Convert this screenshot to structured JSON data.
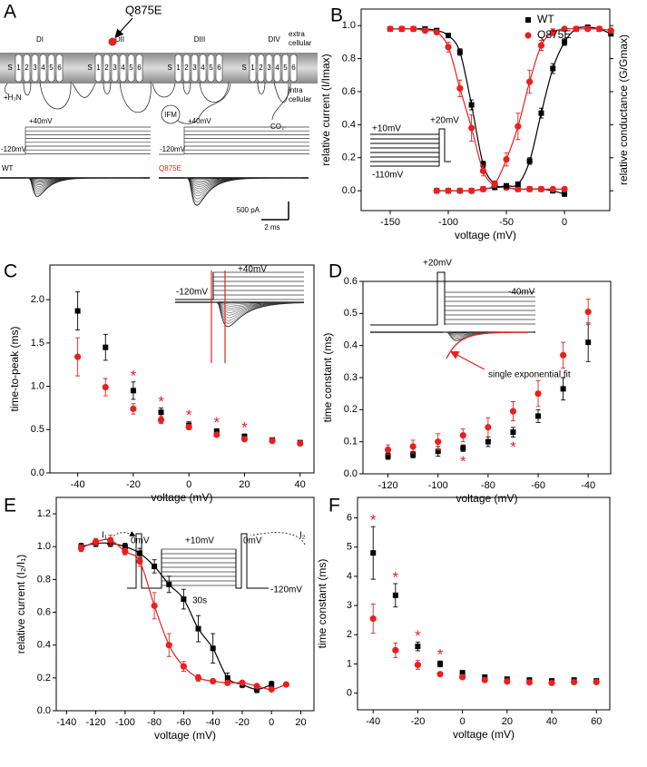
{
  "diagram": {
    "label": "A",
    "mutation": "Q875E",
    "domains": [
      {
        "label": "DI",
        "segments": [
          "S",
          "1",
          "2",
          "3",
          "4",
          "5",
          "6"
        ]
      },
      {
        "label": "DII",
        "segments": [
          "S",
          "1",
          "2",
          "3",
          "4",
          "5",
          "6"
        ]
      },
      {
        "label": "DIII",
        "segments": [
          "S",
          "1",
          "2",
          "3",
          "4",
          "5",
          "6"
        ]
      },
      {
        "label": "DIV",
        "segments": [
          "S",
          "1",
          "2",
          "3",
          "4",
          "5",
          "6"
        ]
      }
    ],
    "extra": [
      "extra",
      "cellular"
    ],
    "intra": [
      "intra",
      "cellular"
    ],
    "n_term": "+H₃N",
    "ifm": "IFM",
    "c_term": "CO₂-",
    "protocols": [
      {
        "top": "+40mV",
        "bottom": "-120mV"
      },
      {
        "top": "+40mV",
        "bottom": "-120mV"
      }
    ],
    "traces": [
      "WT",
      "Q875E"
    ],
    "scale": [
      "500 pA",
      "2 ms"
    ]
  },
  "chart_data": [
    {
      "type": "scatter",
      "label": "B",
      "xlabel": "voltage (mV)",
      "ylabel": "relative current (I/Imax)",
      "y2label": "relative conductance (G/Gmax)",
      "xlim": [
        -175,
        39
      ],
      "ylim": [
        -0.12,
        1.1
      ],
      "xticks": [
        -150,
        -100,
        -50,
        0
      ],
      "yticks": [
        {
          "value": 0,
          "label": "0.0"
        },
        0.2,
        0.4,
        0.6,
        0.8,
        {
          "value": 1,
          "label": "1.0"
        }
      ],
      "legend": "top-right",
      "fit_lines": true,
      "series": [
        {
          "name": "WT",
          "color": "#000000",
          "marker": "square",
          "x": [
            -150,
            -140,
            -130,
            -120,
            -110,
            -100,
            -90,
            -80,
            -70,
            -60,
            -50,
            -40,
            -30,
            -20,
            -10,
            0
          ],
          "values": [
            0.98,
            0.98,
            0.98,
            0.98,
            0.97,
            0.94,
            0.84,
            0.52,
            0.16,
            0.04,
            0.02,
            0.01,
            0.01,
            0.01,
            0,
            -0.02
          ],
          "errors": [
            0.01,
            0.01,
            0.01,
            0.01,
            0.01,
            0.01,
            0.02,
            0.03,
            0.02,
            0.01,
            0.01,
            0.01,
            0.01,
            0.01,
            0.01,
            0.01
          ]
        },
        {
          "name": "Q875E",
          "color": "#e8201f",
          "marker": "circle",
          "x": [
            -150,
            -140,
            -130,
            -120,
            -110,
            -100,
            -90,
            -80,
            -70,
            -60,
            -50,
            -40,
            -30,
            -20,
            -10,
            0
          ],
          "values": [
            0.98,
            0.98,
            0.98,
            0.97,
            0.96,
            0.87,
            0.62,
            0.38,
            0.12,
            0.03,
            0.02,
            0.01,
            0.01,
            0.01,
            0.01,
            0.01
          ],
          "errors": [
            0.01,
            0.01,
            0.01,
            0.01,
            0.01,
            0.03,
            0.05,
            0.08,
            0.03,
            0.01,
            0.01,
            0.01,
            0.01,
            0.01,
            0.01,
            0.01
          ]
        },
        {
          "color": "#000000",
          "marker": "square",
          "x": [
            -110,
            -100,
            -90,
            -80,
            -70,
            -60,
            -50,
            -40,
            -30,
            -20,
            -10,
            0,
            10,
            20,
            30,
            40
          ],
          "values": [
            0,
            0,
            0,
            0,
            0.01,
            0.02,
            0.03,
            0.04,
            0.18,
            0.47,
            0.74,
            0.9,
            0.98,
            0.99,
            0.98,
            0.95
          ],
          "errors": [
            0.01,
            0.01,
            0.01,
            0.01,
            0.01,
            0.01,
            0.01,
            0.01,
            0.02,
            0.03,
            0.03,
            0.02,
            0.01,
            0.01,
            0.01,
            0.01
          ]
        },
        {
          "color": "#e8201f",
          "marker": "circle",
          "x": [
            -110,
            -100,
            -90,
            -80,
            -70,
            -60,
            -50,
            -40,
            -30,
            -20,
            -10,
            0,
            10,
            20,
            30,
            40
          ],
          "values": [
            0,
            0,
            0,
            0,
            0.01,
            0.04,
            0.19,
            0.39,
            0.66,
            0.88,
            0.96,
            0.98,
            0.98,
            0.98,
            0.98,
            0.97
          ],
          "errors": [
            0.01,
            0.01,
            0.01,
            0.01,
            0.01,
            0.02,
            0.04,
            0.08,
            0.07,
            0.03,
            0.02,
            0.01,
            0.01,
            0.01,
            0.01,
            0.01
          ]
        }
      ],
      "annotations": [
        "+10mV",
        "+20mV",
        "-110mV"
      ]
    },
    {
      "type": "scatter",
      "label": "C",
      "xlabel": "voltage (mV)",
      "ylabel": "time-to-peak (ms)",
      "xlim": [
        -50,
        45
      ],
      "ylim": [
        0,
        2.4
      ],
      "xticks": [
        -40,
        -20,
        0,
        20,
        40
      ],
      "yticks": [
        {
          "value": 0,
          "label": "0.0"
        },
        0.5,
        {
          "value": 1,
          "label": "1.0"
        },
        1.5,
        {
          "value": 2,
          "label": "2.0"
        }
      ],
      "x": [
        -40,
        -30,
        -20,
        -10,
        0,
        10,
        20,
        30,
        40
      ],
      "series": [
        {
          "name": "WT",
          "color": "#000000",
          "marker": "square",
          "values": [
            1.87,
            1.45,
            0.95,
            0.7,
            0.55,
            0.48,
            0.42,
            0.38,
            0.35
          ],
          "errors": [
            0.22,
            0.15,
            0.1,
            0.05,
            0.04,
            0.03,
            0.03,
            0.02,
            0.02
          ]
        },
        {
          "name": "Q875E",
          "color": "#e8201f",
          "marker": "circle",
          "values": [
            1.34,
            0.99,
            0.74,
            0.61,
            0.53,
            0.44,
            0.39,
            0.37,
            0.34
          ],
          "errors": [
            0.22,
            0.1,
            0.06,
            0.04,
            0.03,
            0.02,
            0.02,
            0.02,
            0.02
          ]
        }
      ],
      "stars": [
        {
          "x": -20,
          "text": "*"
        },
        {
          "x": -10,
          "text": "*"
        },
        {
          "x": 0,
          "text": "*"
        },
        {
          "x": 10,
          "text": "*"
        },
        {
          "x": 20,
          "text": "*"
        }
      ],
      "star_position": "above",
      "annotations": [
        "+40mV",
        "-120mV"
      ]
    },
    {
      "type": "scatter",
      "label": "D",
      "xlabel": "voltage (mV)",
      "ylabel": "time constant (ms)",
      "xlim": [
        -130,
        -31
      ],
      "ylim": [
        0,
        0.6
      ],
      "xticks": [
        -120,
        -100,
        -80,
        -60,
        -40
      ],
      "yticks": [
        {
          "value": 0,
          "label": "0.0"
        },
        0.1,
        0.2,
        0.3,
        0.4,
        0.5,
        0.6
      ],
      "x": [
        -120,
        -110,
        -100,
        -90,
        -80,
        -70,
        -60,
        -50,
        -40
      ],
      "series": [
        {
          "name": "WT",
          "color": "#000000",
          "marker": "square",
          "values": [
            0.055,
            0.06,
            0.07,
            0.08,
            0.1,
            0.13,
            0.18,
            0.265,
            0.41
          ],
          "errors": [
            0.01,
            0.01,
            0.015,
            0.01,
            0.015,
            0.015,
            0.02,
            0.035,
            0.06
          ]
        },
        {
          "name": "Q875E",
          "color": "#e8201f",
          "marker": "circle",
          "values": [
            0.075,
            0.085,
            0.1,
            0.12,
            0.145,
            0.195,
            0.25,
            0.37,
            0.505
          ],
          "errors": [
            0.015,
            0.02,
            0.025,
            0.02,
            0.03,
            0.03,
            0.04,
            0.04,
            0.04
          ]
        }
      ],
      "stars": [
        {
          "x": -90,
          "text": "*"
        },
        {
          "x": -70,
          "text": "*"
        }
      ],
      "star_position": "below",
      "annotations": [
        "+20mV",
        "-40mV",
        "single exponential fit"
      ]
    },
    {
      "type": "scatter",
      "label": "E",
      "xlabel": "voltage (mV)",
      "ylabel": "relative current (I₂/I₁)",
      "xlim": [
        -147,
        29
      ],
      "ylim": [
        0,
        1.3
      ],
      "xticks": [
        -140,
        -120,
        -100,
        -80,
        -60,
        -40,
        -20,
        0,
        20
      ],
      "yticks": [
        {
          "value": 0,
          "label": "0.0"
        },
        0.2,
        0.4,
        0.6,
        0.8,
        {
          "value": 1,
          "label": "1.0"
        },
        1.2
      ],
      "fit_lines": true,
      "series": [
        {
          "name": "WT",
          "color": "#000000",
          "marker": "square",
          "x": [
            -130,
            -120,
            -110,
            -100,
            -90,
            -80,
            -70,
            -60,
            -50,
            -40,
            -30,
            -20,
            -10,
            0
          ],
          "values": [
            1,
            1.02,
            1.02,
            1,
            0.96,
            0.88,
            0.77,
            0.68,
            0.5,
            0.38,
            0.2,
            0.16,
            0.13,
            0.16
          ],
          "errors": [
            0.02,
            0.02,
            0.02,
            0.02,
            0.03,
            0.04,
            0.05,
            0.06,
            0.08,
            0.09,
            0.03,
            0.02,
            0.02,
            0.02
          ]
        },
        {
          "name": "Q875E",
          "color": "#e8201f",
          "marker": "circle",
          "x": [
            -130,
            -120,
            -110,
            -100,
            -90,
            -80,
            -70,
            -60,
            -50,
            -40,
            -30,
            -20,
            -10,
            0,
            10
          ],
          "values": [
            0.99,
            1.03,
            1.04,
            0.97,
            0.91,
            0.64,
            0.4,
            0.27,
            0.2,
            0.18,
            0.17,
            0.17,
            0.15,
            0.13,
            0.16
          ],
          "errors": [
            0.02,
            0.02,
            0.03,
            0.02,
            0.03,
            0.08,
            0.07,
            0.03,
            0.02,
            0.01,
            0.01,
            0.01,
            0.01,
            0.01,
            0.01
          ]
        }
      ],
      "annotations": [
        "I₁",
        "0mV",
        "+10mV",
        "30s",
        "0mV",
        "-120mV",
        "I₂"
      ]
    },
    {
      "type": "scatter",
      "label": "F",
      "xlabel": "voltage (mV)",
      "ylabel": "time constant (ms)",
      "xlim": [
        -47,
        66
      ],
      "ylim": [
        -0.57,
        6.7
      ],
      "xticks": [
        -40,
        -20,
        0,
        20,
        40,
        60
      ],
      "yticks": [
        0,
        1,
        2,
        3,
        4,
        5,
        6
      ],
      "x": [
        -40,
        -30,
        -20,
        -10,
        0,
        10,
        20,
        30,
        40,
        50,
        60
      ],
      "series": [
        {
          "name": "WT",
          "color": "#000000",
          "marker": "square",
          "values": [
            4.8,
            3.35,
            1.6,
            1,
            0.7,
            0.55,
            0.48,
            0.45,
            0.42,
            0.45,
            0.42
          ],
          "errors": [
            0.9,
            0.4,
            0.15,
            0.1,
            0.05,
            0.05,
            0.04,
            0.04,
            0.04,
            0.04,
            0.04
          ]
        },
        {
          "name": "Q875E",
          "color": "#e8201f",
          "marker": "circle",
          "values": [
            2.55,
            1.47,
            0.97,
            0.65,
            0.55,
            0.45,
            0.4,
            0.37,
            0.35,
            0.38,
            0.38
          ],
          "errors": [
            0.5,
            0.25,
            0.15,
            0.05,
            0.04,
            0.04,
            0.04,
            0.04,
            0.04,
            0.04,
            0.04
          ]
        }
      ],
      "stars": [
        {
          "x": -40,
          "text": "*"
        },
        {
          "x": -30,
          "text": "*"
        },
        {
          "x": -20,
          "text": "*"
        },
        {
          "x": -10,
          "text": "*"
        }
      ],
      "star_position": "above"
    }
  ]
}
